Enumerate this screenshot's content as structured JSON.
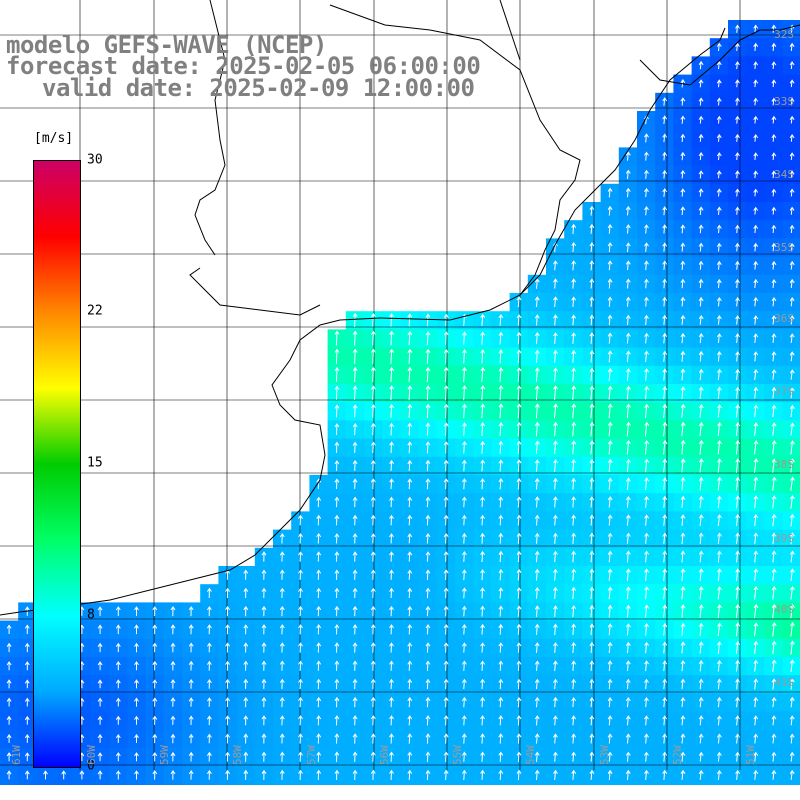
{
  "title": {
    "line1": "modelo GEFS-WAVE (NCEP)",
    "line2": "forecast date: 2025-02-05 06:00:00",
    "line3": "valid date: 2025-02-09 12:00:00"
  },
  "colorbar": {
    "unit": "[m/s]",
    "min": 0,
    "max": 30,
    "ticks": [
      "30",
      "22",
      "15",
      "8",
      "0"
    ],
    "stops": [
      "#0000ff",
      "#00aaff",
      "#00ffff",
      "#00ff66",
      "#00cc00",
      "#ffff00",
      "#ff8800",
      "#ff0000",
      "#cc0066"
    ]
  },
  "map": {
    "variable": "wind speed",
    "lat_labels": [
      "32S",
      "33S",
      "34S",
      "35S",
      "36S",
      "37S",
      "38S",
      "39S",
      "40S",
      "41S"
    ],
    "lon_labels": [
      "61W",
      "60W",
      "59W",
      "58W",
      "57W",
      "56W",
      "55W",
      "54W",
      "53W",
      "52W",
      "51W"
    ],
    "colors": {
      "land": "#ffffff",
      "coast": "#000000",
      "grid": "#000000",
      "arrows": "#ffffff"
    }
  }
}
